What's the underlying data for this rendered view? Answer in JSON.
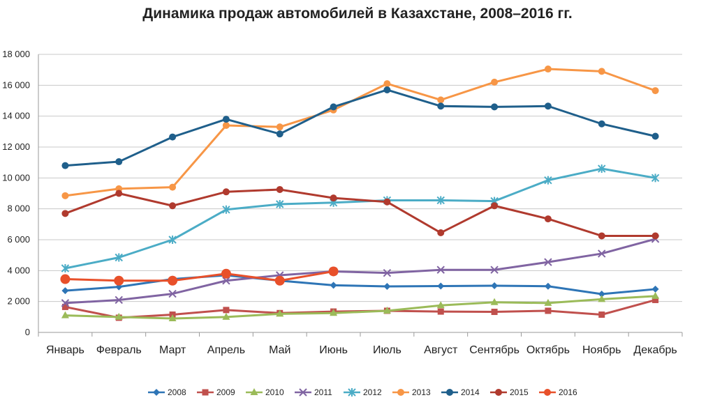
{
  "chart_data": {
    "type": "line",
    "title": "Динамика продаж автомобилей в Казахстане, 2008–2016 гг.",
    "xlabel": "",
    "ylabel": "",
    "ylim": [
      0,
      18000
    ],
    "yticks": [
      0,
      2000,
      4000,
      6000,
      8000,
      10000,
      12000,
      14000,
      16000,
      18000
    ],
    "ytick_labels": [
      "0",
      "2 000",
      "4 000",
      "6 000",
      "8 000",
      "10 000",
      "12 000",
      "14 000",
      "16 000",
      "18 000"
    ],
    "categories": [
      "Январь",
      "Февраль",
      "Март",
      "Апрель",
      "Май",
      "Июнь",
      "Июль",
      "Август",
      "Сентябрь",
      "Октябрь",
      "Ноябрь",
      "Декабрь"
    ],
    "grid": true,
    "legend_position": "bottom",
    "series": [
      {
        "name": "2008",
        "color": "#2E75B6",
        "marker": "diamond",
        "values": [
          2700,
          2950,
          3450,
          3700,
          3350,
          3050,
          2980,
          3000,
          3020,
          2990,
          2480,
          2800
        ]
      },
      {
        "name": "2009",
        "color": "#C0504D",
        "marker": "square",
        "values": [
          1650,
          950,
          1150,
          1450,
          1250,
          1350,
          1400,
          1350,
          1330,
          1400,
          1150,
          2100
        ]
      },
      {
        "name": "2010",
        "color": "#9BBB59",
        "marker": "triangle",
        "values": [
          1100,
          1000,
          900,
          1000,
          1200,
          1250,
          1400,
          1750,
          1950,
          1900,
          2150,
          2350
        ]
      },
      {
        "name": "2011",
        "color": "#8064A2",
        "marker": "x",
        "values": [
          1900,
          2100,
          2500,
          3350,
          3700,
          3950,
          3850,
          4050,
          4050,
          4550,
          5100,
          6050
        ]
      },
      {
        "name": "2012",
        "color": "#4BACC6",
        "marker": "star",
        "values": [
          4150,
          4850,
          6000,
          7950,
          8300,
          8400,
          8550,
          8550,
          8500,
          9850,
          10600,
          10000
        ]
      },
      {
        "name": "2013",
        "color": "#F79646",
        "marker": "circle",
        "values": [
          8850,
          9300,
          9400,
          13400,
          13300,
          14400,
          16100,
          15050,
          16200,
          17050,
          16900,
          15650
        ]
      },
      {
        "name": "2014",
        "color": "#1F5F8B",
        "marker": "circle",
        "values": [
          10800,
          11050,
          12650,
          13800,
          12850,
          14600,
          15700,
          14650,
          14600,
          14650,
          13500,
          12700
        ]
      },
      {
        "name": "2015",
        "color": "#B03A2E",
        "marker": "circle",
        "values": [
          7700,
          9000,
          8200,
          9100,
          9250,
          8700,
          8450,
          6450,
          8200,
          7350,
          6250,
          6250
        ]
      },
      {
        "name": "2016",
        "color": "#E8502A",
        "marker": "bigcircle",
        "values": [
          3450,
          3350,
          3350,
          3800,
          3350,
          3950,
          null,
          null,
          null,
          null,
          null,
          null
        ]
      }
    ]
  }
}
